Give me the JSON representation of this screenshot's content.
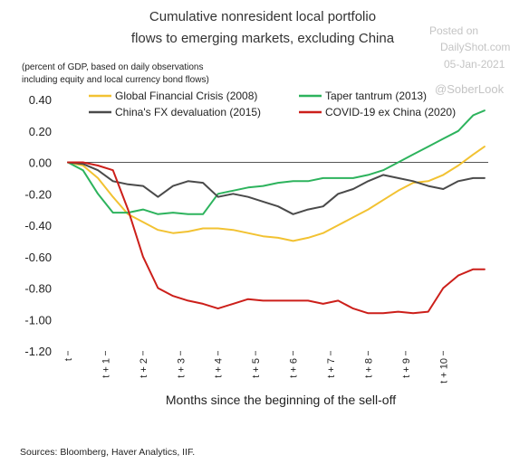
{
  "watermark": {
    "line1": "Posted on",
    "line2": "DailyShot.com",
    "line3": "05-Jan-2021",
    "handle": "@SoberLook"
  },
  "chart_data": {
    "type": "line",
    "title_lines": [
      "Cumulative nonresident local portfolio",
      "flows to emerging markets, excluding China"
    ],
    "subtitle_lines": [
      "(percent of GDP, based on daily observations",
      "including equity and local currency bond flows)"
    ],
    "xlabel": "Months since the beginning of the sell-off",
    "ylabel": "",
    "source": "Sources: Bloomberg, Haver Analytics, IIF.",
    "ylim": [
      -1.2,
      0.4
    ],
    "xlim": [
      0,
      11.2
    ],
    "y_ticks": [
      0.4,
      0.2,
      0.0,
      -0.2,
      -0.4,
      -0.6,
      -0.8,
      -1.0,
      -1.2
    ],
    "y_tick_labels": [
      "0.40",
      "0.20",
      "0.00",
      "-0.20",
      "-0.40",
      "-0.60",
      "-0.80",
      "-1.00",
      "-1.20"
    ],
    "x_ticks": [
      0,
      1,
      2,
      3,
      4,
      5,
      6,
      7,
      8,
      9,
      10
    ],
    "x_tick_labels": [
      "t",
      "t + 1",
      "t + 2",
      "t + 3",
      "t + 4",
      "t + 5",
      "t + 6",
      "t + 7",
      "t + 8",
      "t + 9",
      "t + 10"
    ],
    "zero_line": true,
    "grid": false,
    "legend_position": "top",
    "series": [
      {
        "name": "Global Financial Crisis (2008)",
        "color": "#f2c232",
        "x": [
          0,
          0.4,
          0.8,
          1.2,
          1.6,
          2.0,
          2.4,
          2.8,
          3.2,
          3.6,
          4.0,
          4.4,
          4.8,
          5.2,
          5.6,
          6.0,
          6.4,
          6.8,
          7.2,
          7.6,
          8.0,
          8.4,
          8.8,
          9.2,
          9.6,
          10.0,
          10.4,
          10.8,
          11.1
        ],
        "values": [
          0.0,
          -0.02,
          -0.1,
          -0.22,
          -0.33,
          -0.38,
          -0.43,
          -0.45,
          -0.44,
          -0.42,
          -0.42,
          -0.43,
          -0.45,
          -0.47,
          -0.48,
          -0.5,
          -0.48,
          -0.45,
          -0.4,
          -0.35,
          -0.3,
          -0.24,
          -0.18,
          -0.13,
          -0.12,
          -0.08,
          -0.02,
          0.05,
          0.1
        ]
      },
      {
        "name": "Taper tantrum (2013)",
        "color": "#2db35d",
        "x": [
          0,
          0.4,
          0.8,
          1.2,
          1.6,
          2.0,
          2.4,
          2.8,
          3.2,
          3.6,
          4.0,
          4.4,
          4.8,
          5.2,
          5.6,
          6.0,
          6.4,
          6.8,
          7.2,
          7.6,
          8.0,
          8.4,
          8.8,
          9.2,
          9.6,
          10.0,
          10.4,
          10.8,
          11.1
        ],
        "values": [
          0.0,
          -0.05,
          -0.2,
          -0.32,
          -0.32,
          -0.3,
          -0.33,
          -0.32,
          -0.33,
          -0.33,
          -0.2,
          -0.18,
          -0.16,
          -0.15,
          -0.13,
          -0.12,
          -0.12,
          -0.1,
          -0.1,
          -0.1,
          -0.08,
          -0.05,
          0.0,
          0.05,
          0.1,
          0.15,
          0.2,
          0.3,
          0.33
        ]
      },
      {
        "name": "China's FX devaluation (2015)",
        "color": "#4a4a4a",
        "x": [
          0,
          0.4,
          0.8,
          1.2,
          1.6,
          2.0,
          2.4,
          2.8,
          3.2,
          3.6,
          4.0,
          4.4,
          4.8,
          5.2,
          5.6,
          6.0,
          6.4,
          6.8,
          7.2,
          7.6,
          8.0,
          8.4,
          8.8,
          9.2,
          9.6,
          10.0,
          10.4,
          10.8,
          11.1
        ],
        "values": [
          0.0,
          -0.01,
          -0.05,
          -0.12,
          -0.14,
          -0.15,
          -0.22,
          -0.15,
          -0.12,
          -0.13,
          -0.22,
          -0.2,
          -0.22,
          -0.25,
          -0.28,
          -0.33,
          -0.3,
          -0.28,
          -0.2,
          -0.17,
          -0.12,
          -0.08,
          -0.1,
          -0.12,
          -0.15,
          -0.17,
          -0.12,
          -0.1,
          -0.1
        ]
      },
      {
        "name": "COVID-19 ex China (2020)",
        "color": "#cc1f1a",
        "x": [
          0,
          0.4,
          0.8,
          1.2,
          1.6,
          2.0,
          2.4,
          2.8,
          3.2,
          3.6,
          4.0,
          4.4,
          4.8,
          5.2,
          5.6,
          6.0,
          6.4,
          6.8,
          7.2,
          7.6,
          8.0,
          8.4,
          8.8,
          9.2,
          9.6,
          10.0,
          10.4,
          10.8,
          11.1
        ],
        "values": [
          0.0,
          0.0,
          -0.02,
          -0.05,
          -0.3,
          -0.6,
          -0.8,
          -0.85,
          -0.88,
          -0.9,
          -0.93,
          -0.9,
          -0.87,
          -0.88,
          -0.88,
          -0.88,
          -0.88,
          -0.9,
          -0.88,
          -0.93,
          -0.96,
          -0.96,
          -0.95,
          -0.96,
          -0.95,
          -0.8,
          -0.72,
          -0.68,
          -0.68
        ]
      }
    ]
  }
}
